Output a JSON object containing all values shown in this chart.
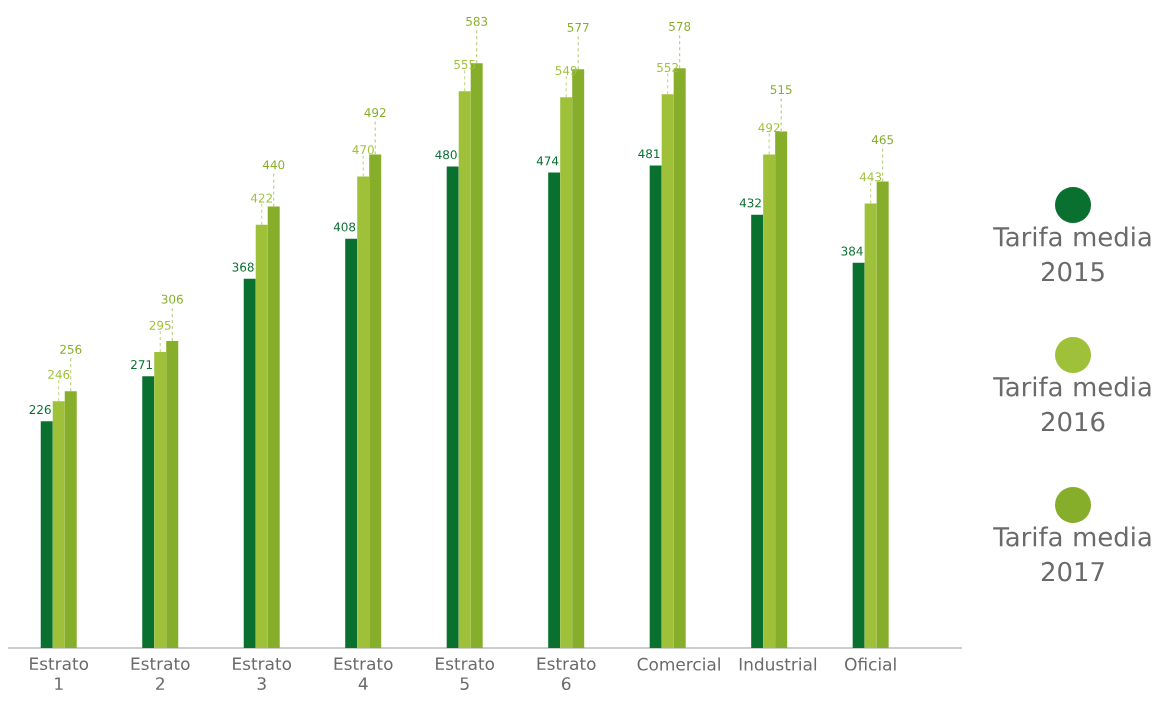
{
  "chart_data": {
    "type": "bar",
    "categories": [
      "Estrato 1",
      "Estrato 2",
      "Estrato 3",
      "Estrato 4",
      "Estrato 5",
      "Estrato 6",
      "Comercial",
      "Industrial",
      "Oficial"
    ],
    "series": [
      {
        "name": "Tarifa media 2015",
        "color": "#0a7030",
        "values": [
          226,
          271,
          368,
          408,
          480,
          474,
          481,
          432,
          384
        ]
      },
      {
        "name": "Tarifa media 2016",
        "color": "#9fc13a",
        "values": [
          246,
          295,
          422,
          470,
          555,
          549,
          552,
          492,
          443
        ]
      },
      {
        "name": "Tarifa media 2017",
        "color": "#86ae2a",
        "values": [
          256,
          306,
          440,
          492,
          583,
          577,
          578,
          515,
          465
        ]
      }
    ],
    "data_labels": true,
    "legend": "right"
  }
}
